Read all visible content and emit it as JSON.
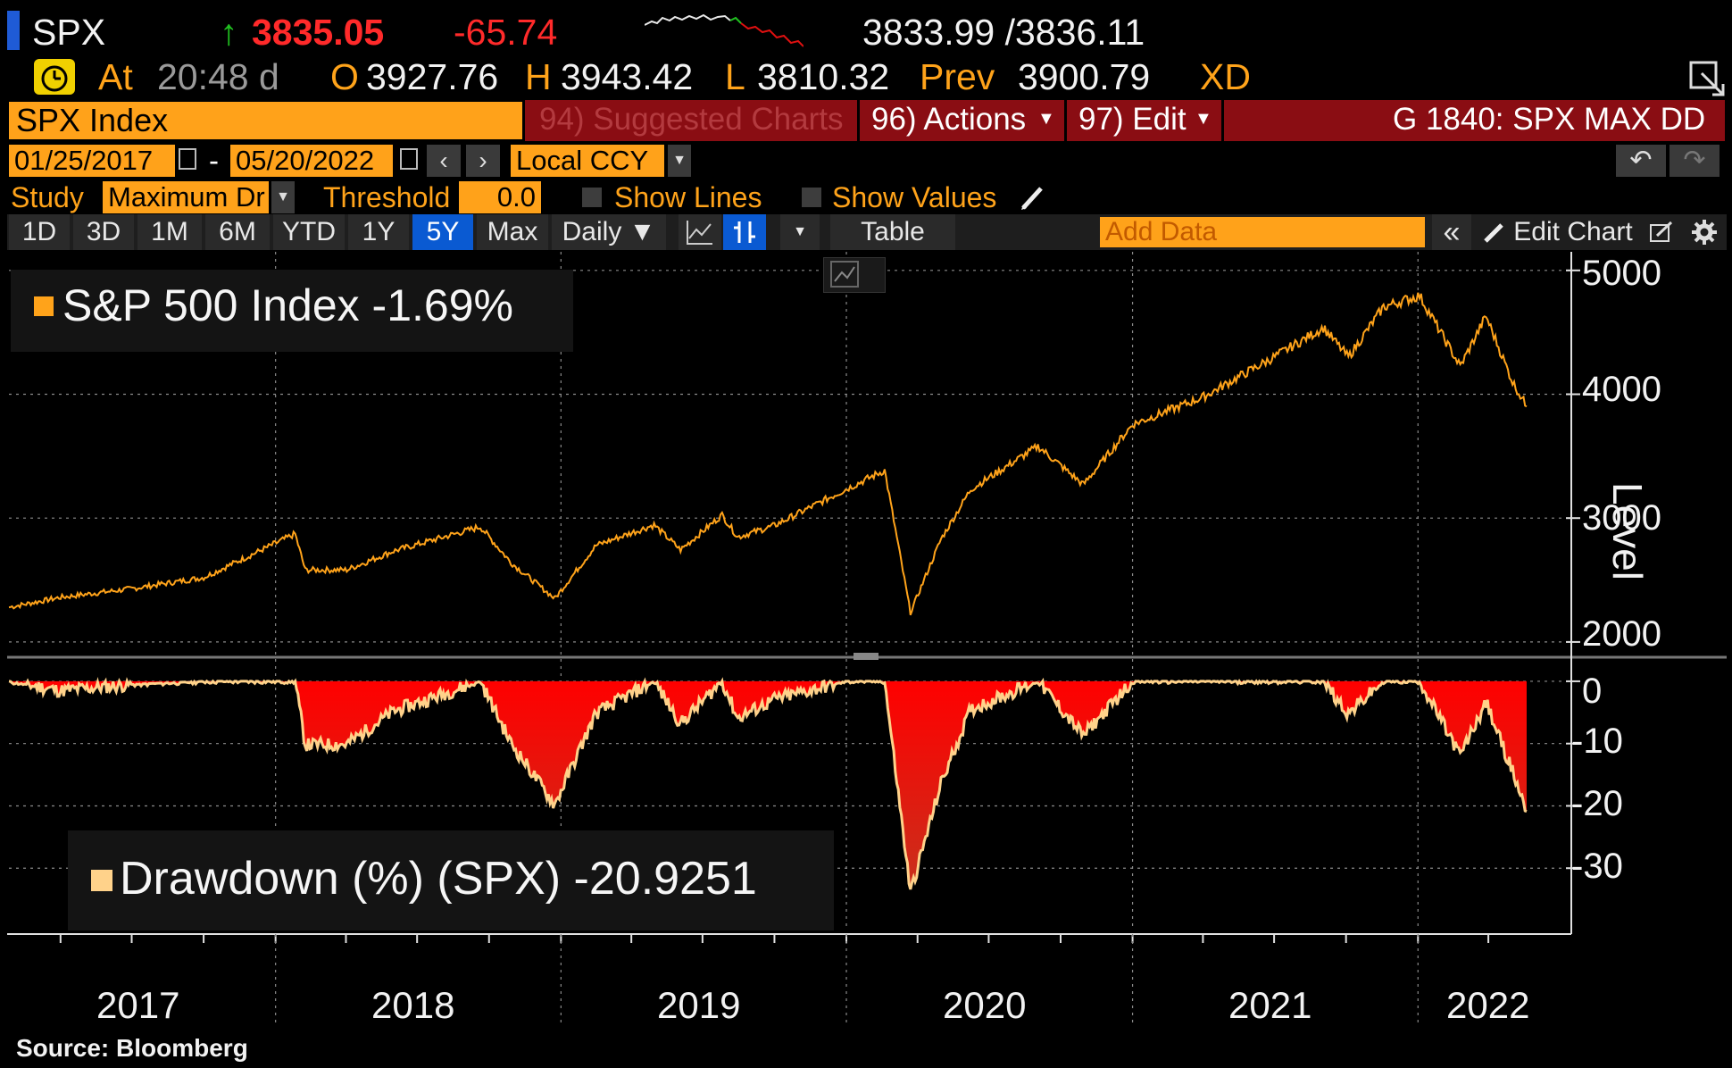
{
  "header": {
    "ticker": "SPX",
    "last_price": "3835.05",
    "change": "-65.74",
    "bid_ask": "3833.99 /3836.11",
    "time_label": "At",
    "time": "20:48 d",
    "open_label": "O",
    "open": "3927.76",
    "high_label": "H",
    "high": "3943.42",
    "low_label": "L",
    "low": "3810.32",
    "prev_label": "Prev",
    "prev": "3900.79",
    "xd": "XD",
    "up_arrow": "↑"
  },
  "command_bar": {
    "security": "SPX Index",
    "suggested": "94) Suggested Charts",
    "actions": "96) Actions",
    "edit": "97) Edit",
    "chart_id": "G 1840: SPX MAX DD"
  },
  "date_range": {
    "start": "01/25/2017",
    "separator": "-",
    "end": "05/20/2022",
    "currency": "Local CCY"
  },
  "study_bar": {
    "study_label": "Study",
    "study_value": "Maximum Dr",
    "threshold_label": "Threshold",
    "threshold_value": "0.0",
    "show_lines": "Show Lines",
    "show_values": "Show Values"
  },
  "toolbar": {
    "ranges": [
      "1D",
      "3D",
      "1M",
      "6M",
      "YTD",
      "1Y",
      "5Y",
      "Max"
    ],
    "selected_range": "5Y",
    "frequency": "Daily ▼",
    "table": "Table",
    "add_data_placeholder": "Add Data",
    "collapse": "«",
    "edit_chart": "Edit Chart"
  },
  "source": "Source: Bloomberg",
  "colors": {
    "price_line": "#ffa31a",
    "drawdown_line": "#ffd28a",
    "drawdown_fill_top": "#ff0000",
    "drawdown_fill_bottom": "#c8301c",
    "selected_tab": "#0a5ad2",
    "command_orange": "#ffa21a",
    "command_red": "#8a0d13"
  },
  "chart_data": [
    {
      "type": "line",
      "legend": "S&P 500 Index -1.69%",
      "ylabel": "Level",
      "ylim": [
        1920,
        5150
      ],
      "yticks": [
        "2000",
        "3000",
        "4000",
        "5000"
      ],
      "x_start": "2017-01-25",
      "x_end": "2022-05-20",
      "series": [
        {
          "name": "S&P 500 Index",
          "x": [
            "2017-01-25",
            "2017-04-01",
            "2017-07-01",
            "2017-10-01",
            "2018-01-26",
            "2018-02-08",
            "2018-04-02",
            "2018-06-01",
            "2018-09-20",
            "2018-10-29",
            "2018-12-24",
            "2019-02-15",
            "2019-04-30",
            "2019-06-03",
            "2019-07-26",
            "2019-08-15",
            "2019-10-01",
            "2019-12-31",
            "2020-02-19",
            "2020-03-23",
            "2020-05-01",
            "2020-06-08",
            "2020-09-02",
            "2020-10-30",
            "2021-01-01",
            "2021-03-31",
            "2021-06-30",
            "2021-09-02",
            "2021-10-04",
            "2021-11-18",
            "2022-01-03",
            "2022-02-24",
            "2022-03-29",
            "2022-05-02",
            "2022-05-20"
          ],
          "values": [
            2280,
            2360,
            2430,
            2520,
            2872,
            2581,
            2582,
            2734,
            2930,
            2641,
            2351,
            2780,
            2945,
            2744,
            3025,
            2847,
            2940,
            3231,
            3386,
            2237,
            2830,
            3232,
            3580,
            3270,
            3756,
            3973,
            4297,
            4537,
            4300,
            4705,
            4796,
            4225,
            4631,
            4100,
            3901
          ]
        }
      ]
    },
    {
      "type": "area",
      "legend": "Drawdown (%) (SPX) -20.9251",
      "ylim": [
        -40,
        3
      ],
      "yticks": [
        "0",
        "-10",
        "-20",
        "-30"
      ],
      "x_start": "2017-01-25",
      "x_end": "2022-05-20",
      "series": [
        {
          "name": "Drawdown (%) (SPX)",
          "x": [
            "2017-01-25",
            "2017-04-01",
            "2017-07-01",
            "2017-10-01",
            "2018-01-26",
            "2018-02-08",
            "2018-04-02",
            "2018-06-01",
            "2018-09-20",
            "2018-10-29",
            "2018-12-24",
            "2019-02-15",
            "2019-04-30",
            "2019-06-03",
            "2019-07-26",
            "2019-08-15",
            "2019-10-01",
            "2019-12-31",
            "2020-02-19",
            "2020-03-23",
            "2020-05-01",
            "2020-06-08",
            "2020-09-02",
            "2020-10-30",
            "2021-01-01",
            "2021-03-31",
            "2021-06-30",
            "2021-09-02",
            "2021-10-04",
            "2021-11-18",
            "2022-01-03",
            "2022-02-24",
            "2022-03-29",
            "2022-05-02",
            "2022-05-20"
          ],
          "values": [
            0,
            -1.5,
            -0.5,
            0,
            0,
            -10.2,
            -10.1,
            -4.8,
            0,
            -9.9,
            -19.8,
            -5.1,
            0,
            -6.8,
            0,
            -5.9,
            -2.9,
            0,
            0,
            -33.9,
            -16.4,
            -4.5,
            0,
            -8.7,
            0,
            0,
            0,
            0,
            -5.2,
            0,
            0,
            -11.9,
            -3.4,
            -14.5,
            -20.9
          ]
        }
      ]
    }
  ],
  "x_axis": {
    "ticks": [
      "2017",
      "2018",
      "2019",
      "2020",
      "2021",
      "2022"
    ],
    "tick_dates": [
      "2017-07-02",
      "2018-07-02",
      "2019-07-02",
      "2020-07-01",
      "2021-07-02",
      "2022-03-10"
    ],
    "grid_dates": [
      "2018-01-01",
      "2019-01-01",
      "2020-01-01",
      "2021-01-01",
      "2022-01-01"
    ]
  }
}
